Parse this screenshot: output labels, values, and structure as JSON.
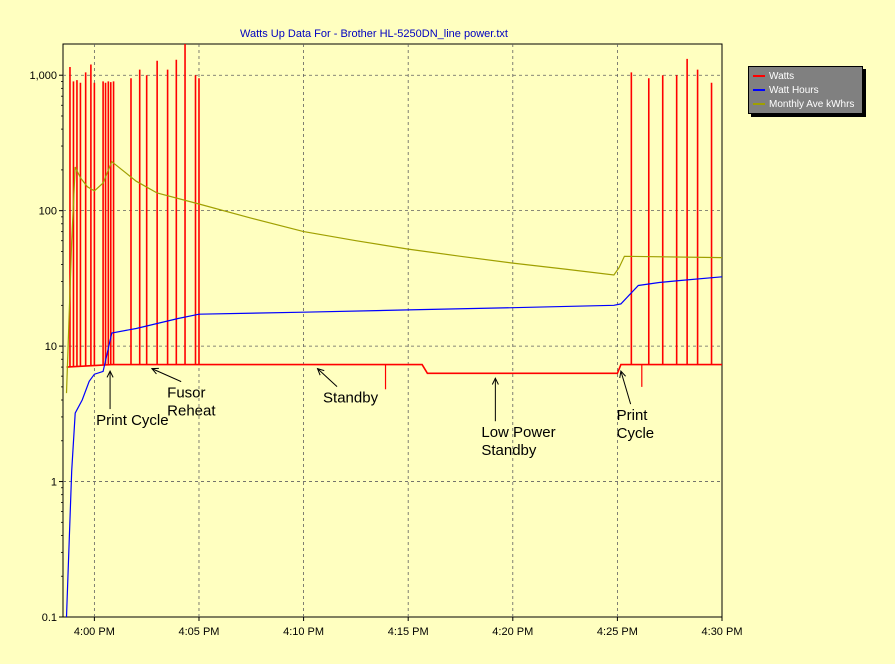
{
  "chart_data": {
    "type": "line",
    "title": "Watts Up Data For - Brother HL-5250DN_line power.txt",
    "y_scale": "log",
    "ylim": [
      0.1,
      1700
    ],
    "y_ticks": [
      0.1,
      1,
      10,
      100,
      1000
    ],
    "y_tick_labels": [
      "0.1",
      "1",
      "10",
      "100",
      "1,000"
    ],
    "xlim": [
      "3:58:30 PM",
      "4:30 PM"
    ],
    "x_ticks": [
      "4:00 PM",
      "4:05 PM",
      "4:10 PM",
      "4:15 PM",
      "4:20 PM",
      "4:25 PM",
      "4:30 PM"
    ],
    "grid": true,
    "legend_position": "right",
    "colors": {
      "Watts": "#ff0000",
      "Watt Hours": "#0000ff",
      "Monthly Ave kWhrs": "#a0a000",
      "title": "#0000c0"
    },
    "series": [
      {
        "name": "Watts",
        "baseline": [
          [
            "3:58:40 PM",
            7
          ],
          [
            "4:00:50 PM",
            7.3
          ],
          [
            "4:15:40 PM",
            7.3
          ],
          [
            "4:15:55 PM",
            6.3
          ],
          [
            "4:25:00 PM",
            6.3
          ],
          [
            "4:25:10 PM",
            7.3
          ],
          [
            "4:30:00 PM",
            7.3
          ]
        ],
        "spikes": [
          [
            "3:58:50 PM",
            1150
          ],
          [
            "3:59:00 PM",
            900
          ],
          [
            "3:59:10 PM",
            920
          ],
          [
            "3:59:20 PM",
            880
          ],
          [
            "3:59:35 PM",
            1050
          ],
          [
            "3:59:50 PM",
            1200
          ],
          [
            "4:00:00 PM",
            880
          ],
          [
            "4:00:25 PM",
            900
          ],
          [
            "4:00:32 PM",
            880
          ],
          [
            "4:00:40 PM",
            900
          ],
          [
            "4:00:47 PM",
            890
          ],
          [
            "4:00:55 PM",
            900
          ],
          [
            "4:01:45 PM",
            950
          ],
          [
            "4:02:10 PM",
            1100
          ],
          [
            "4:02:30 PM",
            1000
          ],
          [
            "4:03:00 PM",
            1280
          ],
          [
            "4:03:30 PM",
            1100
          ],
          [
            "4:03:55 PM",
            1300
          ],
          [
            "4:04:20 PM",
            1700
          ],
          [
            "4:04:50 PM",
            1000
          ],
          [
            "4:05:00 PM",
            950
          ],
          [
            "4:25:40 PM",
            1050
          ],
          [
            "4:26:30 PM",
            950
          ],
          [
            "4:27:10 PM",
            1000
          ],
          [
            "4:27:50 PM",
            1000
          ],
          [
            "4:28:20 PM",
            1320
          ],
          [
            "4:28:50 PM",
            1100
          ],
          [
            "4:29:30 PM",
            880
          ]
        ],
        "dips": [
          [
            "4:13:55 PM",
            4.8
          ],
          [
            "4:26:10 PM",
            5
          ]
        ]
      },
      {
        "name": "Watt Hours",
        "points": [
          [
            "3:58:40 PM",
            0.1
          ],
          [
            "3:58:55 PM",
            1.2
          ],
          [
            "3:59:05 PM",
            3.2
          ],
          [
            "3:59:25 PM",
            4
          ],
          [
            "3:59:45 PM",
            5.5
          ],
          [
            "4:00:00 PM",
            6.2
          ],
          [
            "4:00:25 PM",
            6.5
          ],
          [
            "4:00:50 PM",
            12.5
          ],
          [
            "4:02:00 PM",
            13.5
          ],
          [
            "4:04:00 PM",
            16
          ],
          [
            "4:05:00 PM",
            17.2
          ],
          [
            "4:10:00 PM",
            17.8
          ],
          [
            "4:15:00 PM",
            18.5
          ],
          [
            "4:20:00 PM",
            19.2
          ],
          [
            "4:24:50 PM",
            20
          ],
          [
            "4:25:10 PM",
            20.5
          ],
          [
            "4:26:00 PM",
            28
          ],
          [
            "4:27:00 PM",
            29.5
          ],
          [
            "4:28:00 PM",
            30.5
          ],
          [
            "4:30:00 PM",
            32.5
          ]
        ]
      },
      {
        "name": "Monthly Ave kWhrs",
        "points": [
          [
            "3:58:40 PM",
            4.5
          ],
          [
            "3:58:55 PM",
            60
          ],
          [
            "3:59:05 PM",
            210
          ],
          [
            "3:59:20 PM",
            175
          ],
          [
            "3:59:40 PM",
            150
          ],
          [
            "4:00:00 PM",
            140
          ],
          [
            "4:00:25 PM",
            160
          ],
          [
            "4:00:50 PM",
            230
          ],
          [
            "4:02:00 PM",
            165
          ],
          [
            "4:03:00 PM",
            135
          ],
          [
            "4:05:00 PM",
            112
          ],
          [
            "4:07:30 PM",
            88
          ],
          [
            "4:10:00 PM",
            70
          ],
          [
            "4:12:30 PM",
            60
          ],
          [
            "4:15:00 PM",
            52
          ],
          [
            "4:17:30 PM",
            46
          ],
          [
            "4:20:00 PM",
            41
          ],
          [
            "4:22:30 PM",
            37
          ],
          [
            "4:24:50 PM",
            33.5
          ],
          [
            "4:25:05 PM",
            38
          ],
          [
            "4:25:20 PM",
            46
          ],
          [
            "4:30:00 PM",
            45
          ]
        ]
      }
    ],
    "annotations": [
      {
        "text": "Print Cycle",
        "at": [
          "4:00:45 PM",
          7
        ]
      },
      {
        "text": "Fusor\nReheat",
        "at": [
          "4:02:45 PM",
          7.3
        ]
      },
      {
        "text": "Standby",
        "at": [
          "4:10:40 PM",
          7.3
        ]
      },
      {
        "text": "Low Power\nStandby",
        "at": [
          "4:19:10 PM",
          6.2
        ]
      },
      {
        "text": "Print\nCycle",
        "at": [
          "4:25:10 PM",
          7
        ]
      }
    ]
  }
}
